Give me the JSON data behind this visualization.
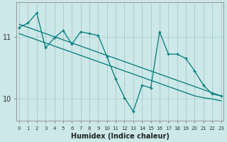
{
  "xlabel": "Humidex (Indice chaleur)",
  "background_color": "#cce8e8",
  "grid_color": "#aacfcf",
  "line_color": "#007a7a",
  "x_values": [
    0,
    1,
    2,
    3,
    4,
    5,
    6,
    7,
    8,
    9,
    10,
    11,
    12,
    13,
    14,
    15,
    16,
    17,
    18,
    19,
    20,
    21,
    22,
    23
  ],
  "y_main": [
    11.15,
    11.22,
    11.38,
    10.82,
    10.98,
    11.1,
    10.88,
    11.08,
    11.05,
    11.02,
    10.68,
    10.32,
    10.02,
    9.8,
    10.22,
    10.18,
    11.08,
    10.72,
    10.72,
    10.65,
    10.45,
    10.22,
    10.08,
    10.05
  ],
  "y_trend1": [
    11.2,
    11.15,
    11.1,
    11.05,
    11.0,
    10.95,
    10.9,
    10.85,
    10.8,
    10.75,
    10.7,
    10.65,
    10.6,
    10.55,
    10.5,
    10.45,
    10.4,
    10.35,
    10.3,
    10.25,
    10.2,
    10.15,
    10.1,
    10.05
  ],
  "y_trend2": [
    11.05,
    11.0,
    10.95,
    10.9,
    10.85,
    10.8,
    10.75,
    10.7,
    10.65,
    10.6,
    10.55,
    10.5,
    10.45,
    10.4,
    10.35,
    10.3,
    10.25,
    10.2,
    10.15,
    10.1,
    10.05,
    10.02,
    10.0,
    9.97
  ],
  "ylim": [
    9.65,
    11.55
  ],
  "yticks": [
    10,
    11
  ],
  "xticks": [
    0,
    1,
    2,
    3,
    4,
    5,
    6,
    7,
    8,
    9,
    10,
    11,
    12,
    13,
    14,
    15,
    16,
    17,
    18,
    19,
    20,
    21,
    22,
    23
  ],
  "xlim": [
    -0.3,
    23.3
  ]
}
